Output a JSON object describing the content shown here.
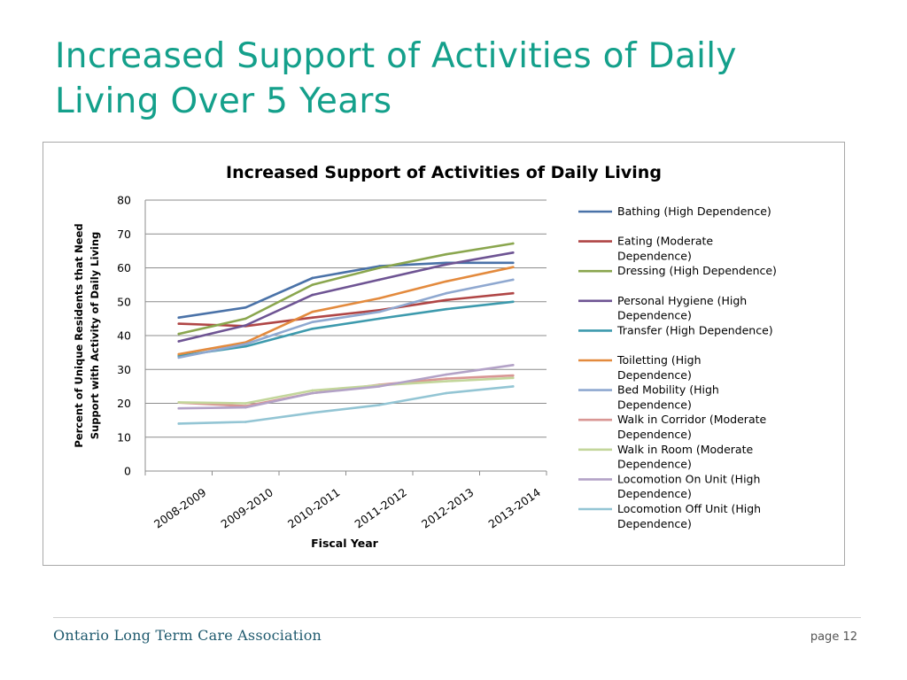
{
  "slide": {
    "title_line1": "Increased Support of Activities of Daily",
    "title_line2": "Living Over 5 Years",
    "footer_org": "Ontario Long Term Care Association",
    "footer_page": "page 12",
    "title_color": "#14a08b"
  },
  "chart_data": {
    "type": "line",
    "title": "Increased Support of Activities of Daily Living",
    "xlabel": "Fiscal Year",
    "ylabel": [
      "Percent of Unique Residents that Need",
      "Support with Activity of Daily Living"
    ],
    "ylim": [
      0,
      80
    ],
    "yticks": [
      0,
      10,
      20,
      30,
      40,
      50,
      60,
      70,
      80
    ],
    "grid": true,
    "legend_position": "right",
    "categories": [
      "2008-2009",
      "2009-2010",
      "2010-2011",
      "2011-2012",
      "2012-2013",
      "2013-2014"
    ],
    "series": [
      {
        "name": "Bathing (High Dependence)",
        "color": "#4a72a8",
        "values": [
          45.3,
          48.3,
          57.0,
          60.5,
          61.5,
          61.5
        ]
      },
      {
        "name": "Eating (Moderate Dependence)",
        "color": "#b04646",
        "values": [
          43.5,
          42.8,
          45.3,
          47.5,
          50.5,
          52.5
        ]
      },
      {
        "name": "Dressing (High Dependence)",
        "color": "#8aa64e",
        "values": [
          40.5,
          45.0,
          55.0,
          60.0,
          64.0,
          67.2
        ]
      },
      {
        "name": "Personal Hygiene (High Dependence)",
        "color": "#6e5493",
        "values": [
          38.3,
          43.0,
          52.0,
          56.5,
          61.0,
          64.5
        ]
      },
      {
        "name": "Transfer (High Dependence)",
        "color": "#3d9aad",
        "values": [
          34.0,
          36.8,
          42.0,
          45.0,
          47.8,
          50.0
        ]
      },
      {
        "name": "Toiletting (High Dependence)",
        "color": "#e38a3d",
        "values": [
          34.5,
          38.0,
          47.0,
          51.0,
          56.0,
          60.2
        ]
      },
      {
        "name": "Bed Mobility (High Dependence)",
        "color": "#8fa8d0",
        "values": [
          33.5,
          37.5,
          44.0,
          47.0,
          52.5,
          56.5
        ]
      },
      {
        "name": "Walk in Corridor (Moderate Dependence)",
        "color": "#d99694",
        "values": [
          20.2,
          19.2,
          23.0,
          25.5,
          27.3,
          28.2
        ]
      },
      {
        "name": "Walk in Room (Moderate Dependence)",
        "color": "#c3d69b",
        "values": [
          20.3,
          20.0,
          23.8,
          25.3,
          26.5,
          27.5
        ]
      },
      {
        "name": "Locomotion On Unit (High Dependence)",
        "color": "#b3a2c7",
        "values": [
          18.5,
          18.8,
          23.0,
          25.0,
          28.5,
          31.3
        ]
      },
      {
        "name": "Locomotion Off Unit (High Dependence)",
        "color": "#93c5d4",
        "values": [
          14.0,
          14.5,
          17.2,
          19.5,
          23.0,
          25.0
        ]
      }
    ]
  }
}
